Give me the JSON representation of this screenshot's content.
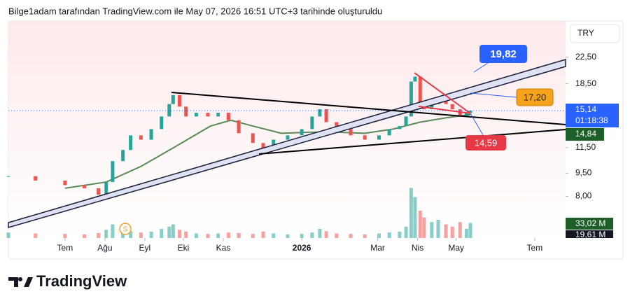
{
  "header": {
    "caption": "Bilge1adam tarafından TradingView.com ile May 07, 2026 16:51 UTC+3 tarihinde oluşturuldu",
    "currency": "TRY"
  },
  "chart_data": {
    "type": "candlestick",
    "log_scale": true,
    "x": [
      -44,
      -23,
      0,
      15,
      26,
      32,
      37,
      45,
      51,
      59,
      67,
      75,
      81,
      84,
      89,
      94,
      102,
      111,
      119,
      127,
      135,
      146,
      154,
      162,
      173,
      184,
      192,
      198,
      203,
      211,
      222,
      233,
      244,
      252,
      260,
      265,
      269,
      272,
      276,
      279,
      285,
      290,
      296,
      301,
      307,
      312,
      315
    ],
    "close": [
      9.3,
      9.0,
      8.7,
      8.5,
      8.1,
      8.9,
      10.4,
      11.3,
      12.6,
      12.2,
      13.2,
      14.5,
      15.9,
      17.0,
      15.6,
      14.5,
      14.9,
      14.5,
      14.9,
      14.1,
      12.8,
      11.9,
      11.4,
      12.2,
      12.6,
      13.2,
      14.5,
      15.3,
      13.9,
      13.2,
      12.6,
      12.2,
      12.6,
      13.2,
      13.5,
      14.5,
      18.8,
      19.5,
      15.6,
      15.3,
      15.9,
      16.6,
      15.9,
      15.3,
      14.5,
      14.9,
      15.14
    ],
    "volume": [
      12,
      10,
      9,
      8,
      11,
      18,
      30,
      22,
      15,
      12,
      14,
      20,
      25,
      30,
      18,
      14,
      10,
      9,
      10,
      12,
      11,
      9,
      14,
      10,
      8,
      9,
      12,
      20,
      15,
      10,
      9,
      8,
      10,
      12,
      14,
      25,
      110,
      90,
      60,
      45,
      35,
      40,
      30,
      25,
      35,
      20,
      33.02
    ],
    "up_color": "#26a69a",
    "down_color": "#ef5350",
    "ma": {
      "color": "#5b8a55",
      "x": [
        0,
        32,
        59,
        86,
        113,
        129,
        146,
        168,
        190,
        211,
        233,
        255,
        276,
        298,
        315
      ],
      "values": [
        8.5,
        8.9,
        10.0,
        11.6,
        13.5,
        14.1,
        13.5,
        12.8,
        12.9,
        12.9,
        12.8,
        13.2,
        13.9,
        14.4,
        14.7
      ]
    },
    "xlim": [
      -44,
      389
    ],
    "xticks": [
      {
        "value": 0,
        "label": "Tem"
      },
      {
        "value": 31,
        "label": "Ağu"
      },
      {
        "value": 62,
        "label": "Eyl"
      },
      {
        "value": 92,
        "label": "Eki"
      },
      {
        "value": 123,
        "label": "Kas"
      },
      {
        "value": 184,
        "label": "2026"
      },
      {
        "value": 243,
        "label": "Mar"
      },
      {
        "value": 274,
        "label": "Nis"
      },
      {
        "value": 304,
        "label": "May"
      },
      {
        "value": 365,
        "label": "Tem"
      }
    ],
    "ylim": [
      5.87,
      29.5
    ],
    "yticks": [
      {
        "value": 8,
        "label": "8,00"
      },
      {
        "value": 9.5,
        "label": "9,50"
      },
      {
        "value": 11.5,
        "label": "11,50"
      },
      {
        "value": 18.5,
        "label": "18,50"
      },
      {
        "value": 22.5,
        "label": "22,50"
      }
    ],
    "y2lim": [
      0,
      120
    ],
    "last_price_label": "15,14",
    "countdown": "01:18:38",
    "ma_price_label": "14,84",
    "volume_label": "33,02 M",
    "volume_ma_label": "19,61 M",
    "annotations": [
      "19,82",
      "17,20",
      "14,59"
    ]
  },
  "footer": {
    "logo": "TradingView"
  }
}
